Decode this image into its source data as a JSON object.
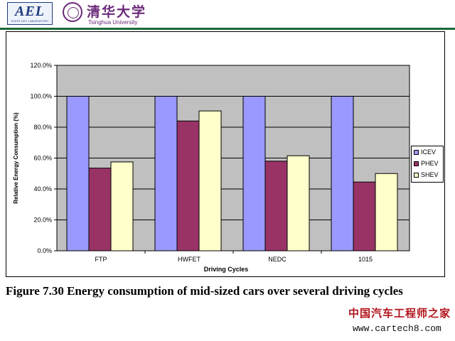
{
  "header": {
    "logo_text": "AEL",
    "logo_subtext": "STATE KEY LABORATORY",
    "university_cn": "清华大学",
    "university_en": "Tsinghua University"
  },
  "chart_data": {
    "type": "bar",
    "categories": [
      "FTP",
      "HWFET",
      "NEDC",
      "1015"
    ],
    "series": [
      {
        "name": "ICEV",
        "values": [
          100,
          100,
          100,
          100
        ],
        "color": "#9999ff"
      },
      {
        "name": "PHEV",
        "values": [
          53.5,
          84,
          58,
          44.5
        ],
        "color": "#993366"
      },
      {
        "name": "SHEV",
        "values": [
          57.5,
          90.5,
          61.5,
          50
        ],
        "color": "#ffffcc"
      }
    ],
    "xlabel": "Driving Cycles",
    "ylabel": "Relative Energy Consumption (%)",
    "ylim": [
      0,
      120
    ],
    "yticks": [
      "0.0%",
      "20.0%",
      "40.0%",
      "60.0%",
      "80.0%",
      "100.0%",
      "120.0%"
    ],
    "plot_background": "#c0c0c0",
    "grid": true,
    "legend_position": "right"
  },
  "caption": "Figure 7.30 Energy consumption of mid-sized cars over several driving cycles",
  "watermark": {
    "cn": "中国汽车工程师之家",
    "url": "www.cartech8.com"
  }
}
